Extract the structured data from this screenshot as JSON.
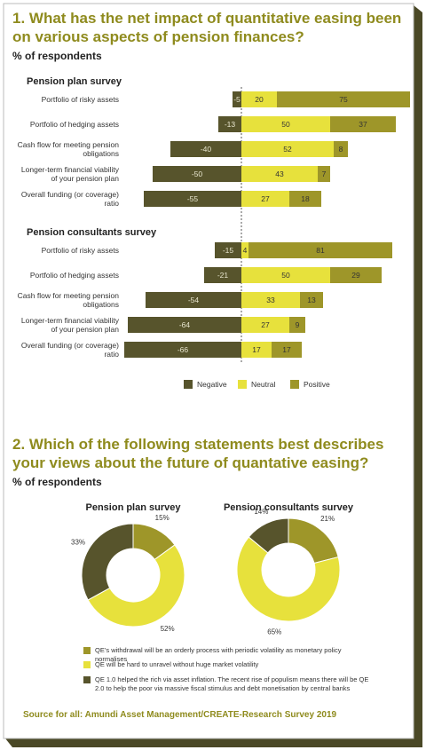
{
  "sections": [
    {
      "heading": "1. What has the net impact of quantitative easing been on various aspects of pension finances?",
      "subheading": "% of respondents"
    },
    {
      "heading": "2. Which of the following statements best describes your views about the future of quantative easing?",
      "subheading": "% of respondents"
    }
  ],
  "chart_data": [
    {
      "type": "bar",
      "series": [
        {
          "name": "Negative",
          "color": "#57542c"
        },
        {
          "name": "Neutral",
          "color": "#e7e13c"
        },
        {
          "name": "Positive",
          "color": "#9e9629"
        }
      ],
      "panels": [
        {
          "title": "Pension plan survey",
          "categories": [
            "Portfolio of risky assets",
            "Portfolio of hedging assets",
            "Cash flow for meeting pension obligations",
            "Longer-term financial viability of your pension plan",
            "Overall funding (or coverage) ratio"
          ],
          "values": [
            [
              -5,
              -13,
              -40,
              -50,
              -55
            ],
            [
              20,
              50,
              52,
              43,
              27
            ],
            [
              75,
              37,
              8,
              7,
              18
            ]
          ]
        },
        {
          "title": "Pension consultants survey",
          "categories": [
            "Portfolio of risky assets",
            "Portfolio of hedging assets",
            "Cash flow for meeting pension obligations",
            "Longer-term financial viability of your pension plan",
            "Overall funding (or coverage) ratio"
          ],
          "values": [
            [
              -15,
              -21,
              -54,
              -64,
              -66
            ],
            [
              4,
              50,
              33,
              27,
              17
            ],
            [
              81,
              29,
              13,
              9,
              17
            ]
          ]
        }
      ]
    },
    {
      "type": "pie",
      "donut": true,
      "categories": [
        "QE’s withdrawal will be an orderly process with periodic volatility as monetary policy normalises",
        "QE will be hard to unravel without huge market volatility",
        "QE 1.0 helped the rich via asset inflation. The recent rise of populism means there will be QE 2.0 to help the poor via massive fiscal stimulus and debt monetisation by central banks"
      ],
      "colors": [
        "#9e9629",
        "#e7e13c",
        "#57542c"
      ],
      "series": [
        {
          "name": "Pension plan survey",
          "values": [
            15,
            52,
            33
          ],
          "value_labels": [
            "15%",
            "52%",
            "33%"
          ]
        },
        {
          "name": "Pension consultants survey",
          "values": [
            21,
            65,
            14
          ],
          "value_labels": [
            "21%",
            "65%",
            "14%"
          ]
        }
      ]
    }
  ],
  "source": "Source for all: Amundi Asset Management/CREATE-Research Survey 2019"
}
